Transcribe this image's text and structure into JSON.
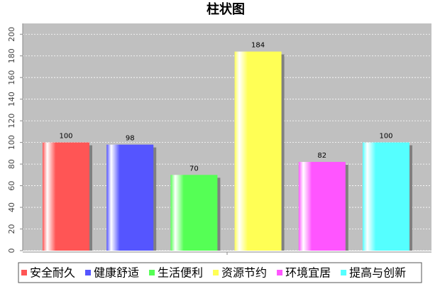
{
  "chart_data": {
    "type": "bar",
    "title": "柱状图",
    "categories": [
      null
    ],
    "series": [
      {
        "name": "安全耐久",
        "color": "#ff5555",
        "values": [
          100
        ]
      },
      {
        "name": "健康舒适",
        "color": "#5555ff",
        "values": [
          98
        ]
      },
      {
        "name": "生活便利",
        "color": "#55ff55",
        "values": [
          70
        ]
      },
      {
        "name": "资源节约",
        "color": "#ffff55",
        "values": [
          184
        ]
      },
      {
        "name": "环境宜居",
        "color": "#ff55ff",
        "values": [
          82
        ]
      },
      {
        "name": "提高与创新",
        "color": "#55ffff",
        "values": [
          100
        ]
      }
    ],
    "ylim": [
      0,
      210
    ],
    "yticks": [
      0,
      20,
      40,
      60,
      80,
      100,
      120,
      140,
      160,
      180,
      200
    ],
    "grid": true,
    "legend": "bottom"
  }
}
